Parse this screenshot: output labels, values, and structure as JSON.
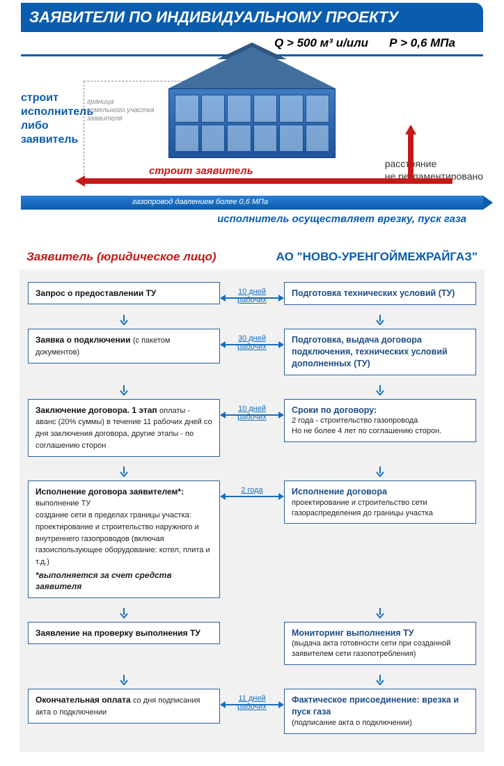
{
  "header": {
    "title": "ЗАЯВИТЕЛИ ПО ИНДИВИДУАЛЬНОМУ ПРОЕКТУ",
    "spec_volume": "Q > 500 м³  и/или",
    "spec_pressure": "Р > 0,6 МПа"
  },
  "scene": {
    "left_builder": "строит\nисполнитель\nлибо\nзаявитель",
    "border_note": "граница\nземельного участка\nзаявителя",
    "applicant_builds": "строит  заявитель",
    "distance_note": "расстояние\nне регламентировано",
    "pipeline_label": "газопровод давлением более 0,6 МПа",
    "connector_text": "исполнитель осуществляет врезку, пуск газа",
    "colors": {
      "brand_blue": "#0a5cad",
      "red": "#c41919",
      "pipe_grad_top": "#2b7ed6",
      "pipe_grad_bot": "#0a5cad",
      "gray_bg": "#f1f1f2",
      "box_border": "#26619c"
    }
  },
  "flow": {
    "left_title": "Заявитель (юридическое лицо)",
    "right_title": "АО \"НОВО-УРЕНГОЙМЕЖРАЙГАЗ\"",
    "rows": [
      {
        "left_title": "Запрос о предоставлении ТУ",
        "left_body": "",
        "link": "10 дней\nрабочих",
        "right_title": "Подготовка технических условий  (ТУ)",
        "right_body": ""
      },
      {
        "left_title": "Заявка о подключении",
        "left_body": "(с пакетом документов)",
        "link": "30 дней\nрабочих",
        "right_title": "Подготовка, выдача договора подключения, технических условий дополненных (ТУ)",
        "right_body": ""
      },
      {
        "left_title": "Заключение договора. 1 этап",
        "left_body": "оплаты - аванс (20% суммы)  в течение 11 рабочих дней со дня заключения договора, другие этапы - по соглашению сторон",
        "link": "10 дней\nрабочих",
        "right_title": "Сроки по договору:",
        "right_body": "2 года  - строительство газопровода\nНо не более 4 лет по соглашению сторон."
      },
      {
        "left_title": "Исполнение договора заявителем*:",
        "left_body": "выполнение ТУ\nсоздание сети в пределах границы участка: проектирование и строительство наружного и внутреннего газопроводов (включая газоиспользующее оборудование: котел, плита и т.д.)",
        "left_footnote": "*выполняется за счет средств заявителя",
        "link": "2 года",
        "right_title": "Исполнение договора",
        "right_body": "проектирование и строительство сети газораспределения до границы участка"
      },
      {
        "left_title": "Заявление на проверку выполнения ТУ",
        "left_body": "",
        "link": "",
        "right_title": "Мониторинг выполнения ТУ",
        "right_body": "(выдача акта готовности сети при созданной заявителем сети газопотребления)"
      },
      {
        "left_title": "Окончательная оплата",
        "left_body": "со дня подписания акта о подключении",
        "link": "11 дней\nрабочих",
        "right_title": "Фактическое присоединение: врезка и пуск газа",
        "right_body": "(подписание акта о подключении)"
      }
    ]
  }
}
